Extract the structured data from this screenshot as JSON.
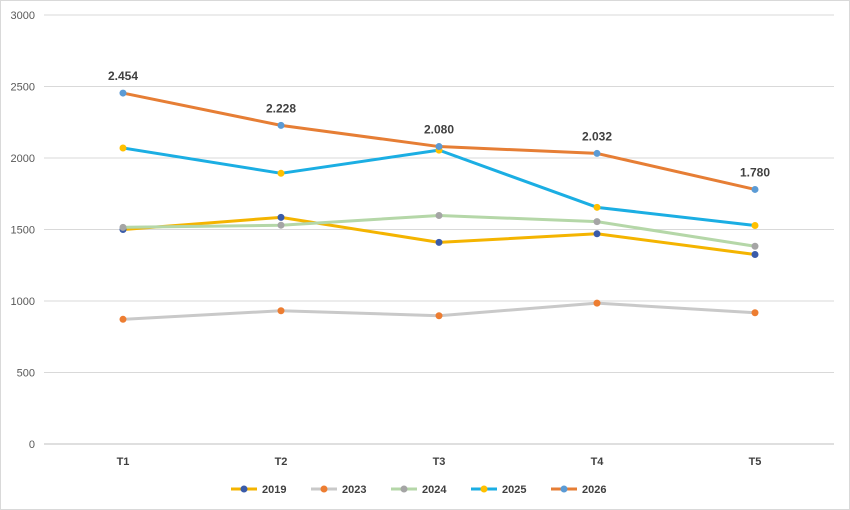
{
  "chart_data": {
    "type": "line",
    "categories": [
      "T1",
      "T2",
      "T3",
      "T4",
      "T5"
    ],
    "ylim": [
      0,
      3000
    ],
    "yticks": [
      0,
      500,
      1000,
      1500,
      2000,
      2500,
      3000
    ],
    "grid": true,
    "legend_position": "bottom",
    "series": [
      {
        "name": "2019",
        "line_color": "#F4B400",
        "marker_color": "#3A5BA9",
        "values": [
          1500,
          1585,
          1410,
          1470,
          1325
        ]
      },
      {
        "name": "2023",
        "line_color": "#C9C9C9",
        "marker_color": "#ED7D31",
        "values": [
          872,
          932,
          897,
          985,
          918
        ]
      },
      {
        "name": "2024",
        "line_color": "#B5D7A8",
        "marker_color": "#A5A5A5",
        "values": [
          1515,
          1530,
          1598,
          1555,
          1383
        ]
      },
      {
        "name": "2025",
        "line_color": "#1BAEE3",
        "marker_color": "#FFC000",
        "values": [
          2070,
          1893,
          2055,
          1655,
          1528
        ]
      },
      {
        "name": "2026",
        "line_color": "#E67E35",
        "marker_color": "#5B9BD5",
        "values": [
          2454,
          2228,
          2080,
          2032,
          1780
        ],
        "data_labels": [
          "2.454",
          "2.228",
          "2.080",
          "2.032",
          "1.780"
        ]
      }
    ]
  }
}
